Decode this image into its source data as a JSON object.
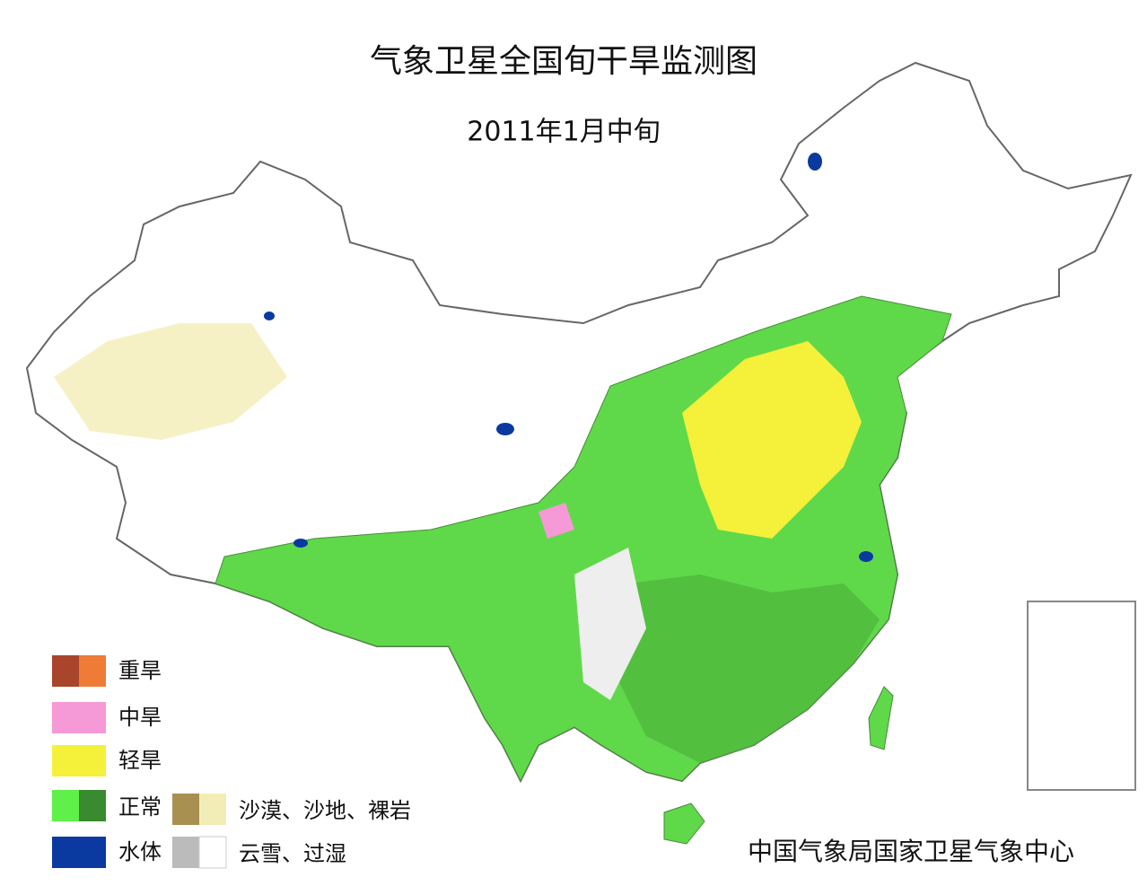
{
  "title": "气象卫星全国旬干旱监测图",
  "subtitle": "2011年1月中旬",
  "legend": [
    "重旱",
    "中旱",
    "轻旱",
    "正常",
    "水体"
  ],
  "legend_extra": [
    "沙漠、沙地、裸岩",
    "云雪、过湿"
  ],
  "credit": "中国气象局国家卫星气象中心"
}
